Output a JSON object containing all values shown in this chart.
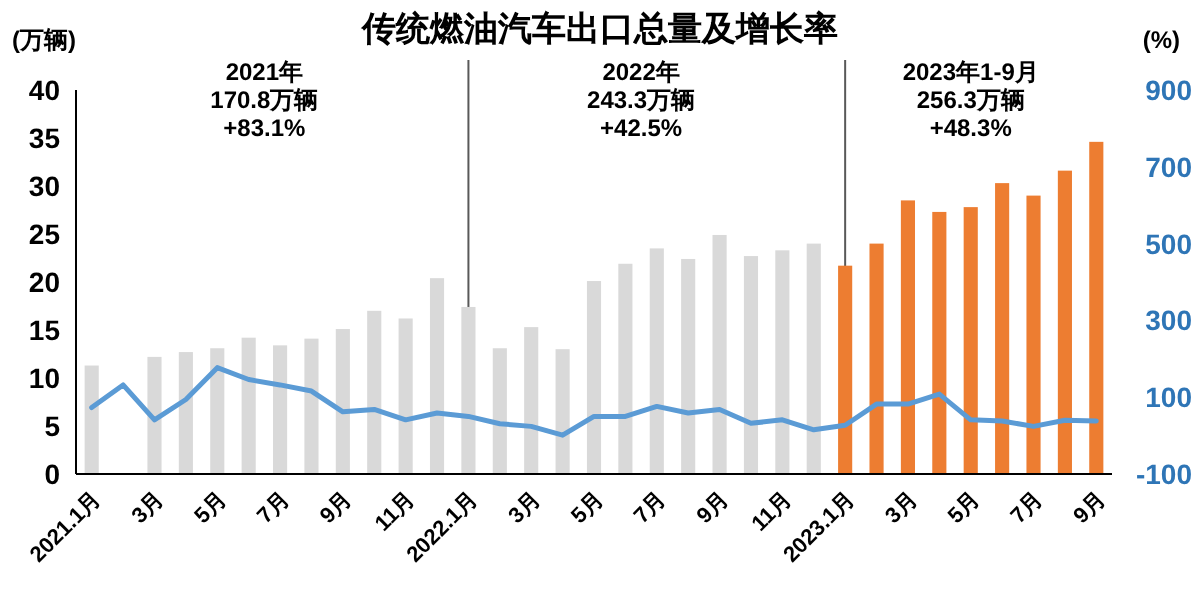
{
  "chart_data": {
    "type": "bar",
    "title": "传统燃油汽车出口总量及增长率",
    "ylabel": "(万辆)",
    "y2label": "(%)",
    "categories": [
      "2021.1月",
      null,
      "3月",
      null,
      "5月",
      null,
      "7月",
      null,
      "9月",
      null,
      "11月",
      null,
      "2022.1月",
      null,
      "3月",
      null,
      "5月",
      null,
      "7月",
      null,
      "9月",
      null,
      "11月",
      null,
      "2023.1月",
      null,
      "3月",
      null,
      "5月",
      null,
      "7月",
      null,
      "9月"
    ],
    "series": [
      {
        "colors": [
          "#d9d9d9",
          "#d9d9d9",
          "#d9d9d9",
          "#d9d9d9",
          "#d9d9d9",
          "#d9d9d9",
          "#d9d9d9",
          "#d9d9d9",
          "#d9d9d9",
          "#d9d9d9",
          "#d9d9d9",
          "#d9d9d9",
          "#d9d9d9",
          "#d9d9d9",
          "#d9d9d9",
          "#d9d9d9",
          "#d9d9d9",
          "#d9d9d9",
          "#d9d9d9",
          "#d9d9d9",
          "#d9d9d9",
          "#d9d9d9",
          "#d9d9d9",
          "#d9d9d9",
          "#ed7d31",
          "#ed7d31",
          "#ed7d31",
          "#ed7d31",
          "#ed7d31",
          "#ed7d31",
          "#ed7d31",
          "#ed7d31",
          "#ed7d31"
        ],
        "values": [
          11.3,
          null,
          12.2,
          12.7,
          13.1,
          14.2,
          13.4,
          14.1,
          15.1,
          17.0,
          16.2,
          20.4,
          17.4,
          13.1,
          15.3,
          13.0,
          20.1,
          21.9,
          23.5,
          22.4,
          24.9,
          22.7,
          23.3,
          24.0,
          21.7,
          24.0,
          28.5,
          27.3,
          27.8,
          30.3,
          29.0,
          31.6,
          34.6
        ]
      },
      {
        "type": "line",
        "axis": "y2",
        "color": "#5b9bd5",
        "values": [
          73,
          132,
          41,
          94,
          177,
          146,
          132,
          116,
          62,
          68,
          41,
          59,
          50,
          31,
          24,
          1,
          50,
          50,
          76,
          59,
          68,
          32,
          41,
          15,
          27,
          82,
          82,
          108,
          41,
          38,
          24,
          40,
          38
        ]
      }
    ],
    "ylim": [
      0,
      40
    ],
    "yticks": [
      0,
      5,
      10,
      15,
      20,
      25,
      30,
      35,
      40
    ],
    "y2lim": [
      -100,
      900
    ],
    "y2ticks": [
      -100,
      100,
      300,
      500,
      700,
      900
    ],
    "ref_lines": [
      {
        "axis": "x",
        "value": "2022.1月",
        "color": "#595959"
      },
      {
        "axis": "x",
        "value": "2023.1月",
        "color": "#595959"
      }
    ],
    "annotations": [
      "2021年\n170.8万辆\n+83.1%",
      "2022年\n243.3万辆\n+42.5%",
      "2023年1-9月\n256.3万辆\n+48.3%"
    ],
    "grid": false,
    "marker": "none",
    "line_style": "solid"
  }
}
